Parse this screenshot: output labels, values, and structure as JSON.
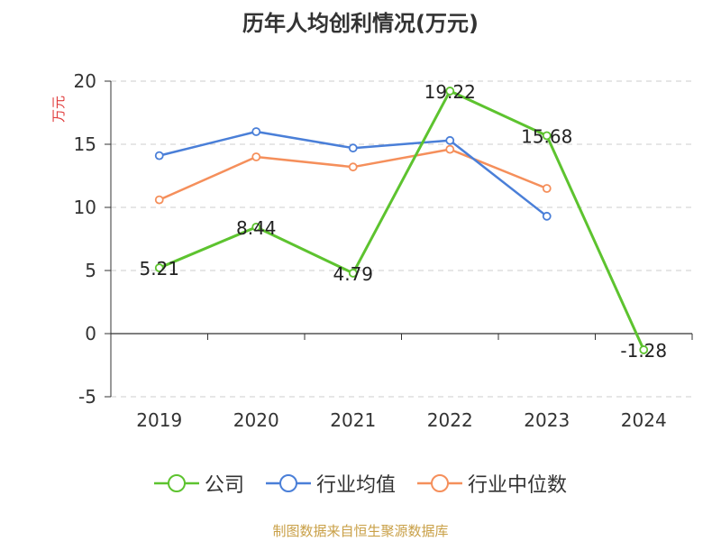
{
  "chart_data": {
    "type": "line",
    "title": "历年人均创利情况(万元)",
    "ylabel": "万元",
    "xlabel": "",
    "categories": [
      "2019",
      "2020",
      "2021",
      "2022",
      "2023",
      "2024"
    ],
    "ylim": [
      -5,
      20
    ],
    "yticks": [
      -5,
      0,
      5,
      10,
      15,
      20
    ],
    "grid": true,
    "legend_position": "bottom",
    "series": [
      {
        "name": "公司",
        "values": [
          5.21,
          8.44,
          4.79,
          19.22,
          15.68,
          -1.28
        ],
        "color": "#5dc32f",
        "labels": [
          "5.21",
          "8.44",
          "4.79",
          "19.22",
          "15.68",
          "-1.28"
        ]
      },
      {
        "name": "行业均值",
        "values": [
          14.1,
          16.0,
          14.7,
          15.3,
          9.3,
          null
        ],
        "color": "#4a7fd8"
      },
      {
        "name": "行业中位数",
        "values": [
          10.6,
          14.0,
          13.2,
          14.6,
          11.5,
          null
        ],
        "color": "#f58f5b"
      }
    ]
  },
  "legend": {
    "items": [
      "公司",
      "行业均值",
      "行业中位数"
    ]
  },
  "source_note": "制图数据来自恒生聚源数据库"
}
